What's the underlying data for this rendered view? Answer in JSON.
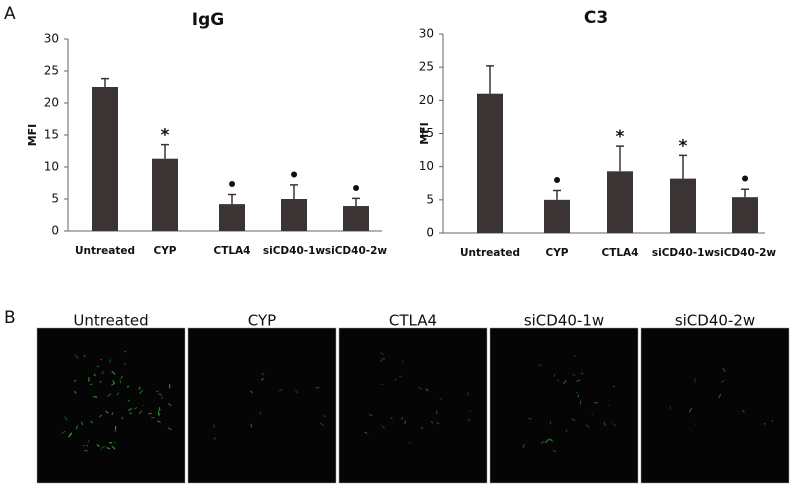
{
  "panels": [
    "A",
    "B"
  ],
  "chart_data": [
    {
      "type": "bar",
      "title": "IgG",
      "y_label": "MFI",
      "categories": [
        "Untreated",
        "CYP",
        "CTLA4",
        "siCD40-1w",
        "siCD40-2w"
      ],
      "values": [
        22.5,
        11.3,
        4.2,
        5.0,
        3.9
      ],
      "errors": [
        1.3,
        2.2,
        1.5,
        2.2,
        1.2
      ],
      "annotations": [
        null,
        "*",
        "•",
        "•",
        "•"
      ],
      "color": "#3b3434",
      "ylim": [
        0,
        30
      ],
      "yticks": [
        0,
        5,
        10,
        15,
        20,
        25,
        30
      ],
      "grid": false
    },
    {
      "type": "bar",
      "title": "C3",
      "y_label": "MFI",
      "categories": [
        "Untreated",
        "CYP",
        "CTLA4",
        "siCD40-1w",
        "siCD40-2w"
      ],
      "values": [
        21.0,
        5.0,
        9.3,
        8.2,
        5.4
      ],
      "errors": [
        4.2,
        1.4,
        3.8,
        3.5,
        1.2
      ],
      "annotations": [
        null,
        "•",
        "*",
        "*",
        "•"
      ],
      "color": "#3b3434",
      "ylim": [
        0,
        30
      ],
      "yticks": [
        0,
        5,
        10,
        15,
        20,
        25,
        30
      ],
      "grid": false
    }
  ],
  "images": {
    "labels": [
      "Untreated",
      "CYP",
      "CTLA4",
      "siCD40-1w",
      "siCD40-2w"
    ]
  }
}
